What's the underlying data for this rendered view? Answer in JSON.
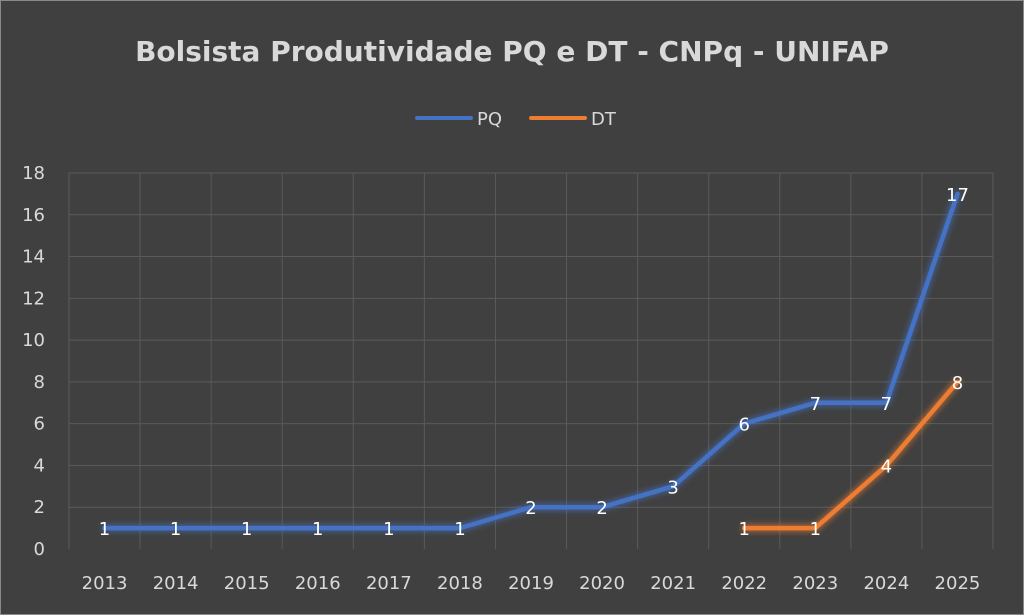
{
  "chart_data": {
    "type": "line",
    "title": "Bolsista Produtividade PQ e DT - CNPq - UNIFAP",
    "categories": [
      "2013",
      "2014",
      "2015",
      "2016",
      "2017",
      "2018",
      "2019",
      "2020",
      "2021",
      "2022",
      "2023",
      "2024",
      "2025"
    ],
    "series": [
      {
        "name": "PQ",
        "color": "#4472c4",
        "values": [
          1,
          1,
          1,
          1,
          1,
          1,
          2,
          2,
          3,
          6,
          7,
          7,
          17
        ]
      },
      {
        "name": "DT",
        "color": "#ed7d31",
        "values": [
          null,
          null,
          null,
          null,
          null,
          null,
          null,
          null,
          null,
          1,
          1,
          4,
          8
        ]
      }
    ],
    "ylim": [
      0,
      18
    ],
    "yticks": [
      0,
      2,
      4,
      6,
      8,
      10,
      12,
      14,
      16,
      18
    ],
    "grid": true,
    "legend_position": "top",
    "data_labels": true
  }
}
